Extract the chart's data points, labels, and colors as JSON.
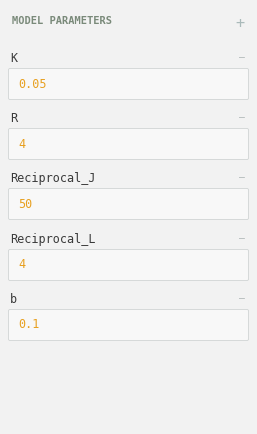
{
  "title": "MODEL PARAMETERS",
  "title_color": "#7a8a7a",
  "plus_color": "#aababa",
  "panel_bg": "#f2f2f2",
  "parameters": [
    {
      "label": "K",
      "value": "0.05"
    },
    {
      "label": "R",
      "value": "4"
    },
    {
      "label": "Reciprocal_J",
      "value": "50"
    },
    {
      "label": "Reciprocal_L",
      "value": "4"
    },
    {
      "label": "b",
      "value": "0.1"
    }
  ],
  "label_color": "#3a3a3a",
  "value_color": "#e8a020",
  "minus_color": "#b0b8b8",
  "box_bg": "#ffffff",
  "box_border": "#d0d4d4",
  "box_bg_value": "#f8f8f8",
  "figw": 2.57,
  "figh": 4.34,
  "dpi": 100
}
